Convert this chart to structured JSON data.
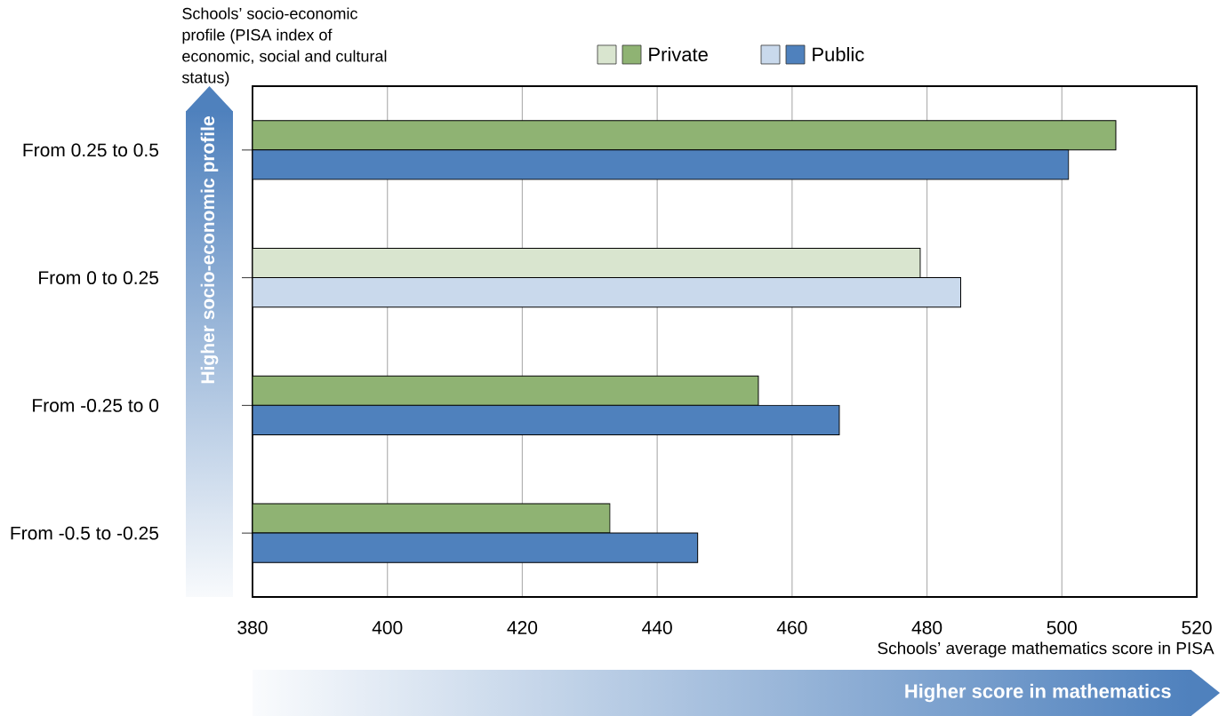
{
  "chart_data": {
    "type": "bar",
    "orientation": "horizontal",
    "ylabel": "Schools’ socio-economic profile (PISA index of economic, social and cultural status)",
    "xlabel": "Schools’ average mathematics score in PISA",
    "categories": [
      "From 0.25 to 0.5",
      "From 0 to 0.25",
      "From -0.25 to 0",
      "From -0.5 to -0.25"
    ],
    "series": [
      {
        "name": "Private",
        "colors": [
          "#8fb373",
          "#d9e5cf",
          "#8fb373",
          "#8fb373"
        ],
        "values": [
          508,
          479,
          455,
          433
        ]
      },
      {
        "name": "Public",
        "colors": [
          "#4f81bd",
          "#c9d9ec",
          "#4f81bd",
          "#4f81bd"
        ],
        "values": [
          501,
          485,
          467,
          446
        ]
      }
    ],
    "xlim": [
      380,
      520
    ],
    "xticks": [
      380,
      400,
      420,
      440,
      460,
      480,
      500,
      520
    ],
    "grid": "x",
    "legend": "top",
    "annotations": [
      "Higher socio-economic profile",
      "Higher score in mathematics"
    ]
  }
}
